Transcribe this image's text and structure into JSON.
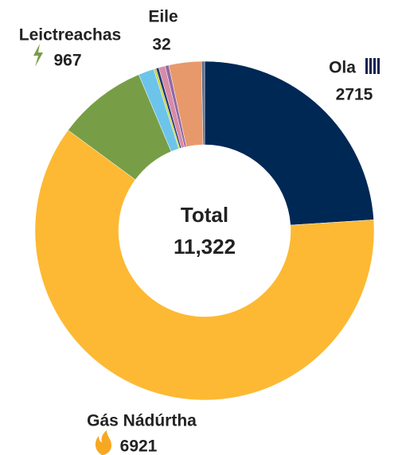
{
  "chart_data": {
    "type": "donut",
    "center_label": "Total",
    "center_value": "11,322",
    "categories": [
      "Ola",
      "Gás Nádúrtha",
      "Leictreachas",
      null,
      null,
      null,
      null,
      null,
      null,
      "Eile"
    ],
    "values": [
      2715,
      6921,
      967,
      170,
      25,
      30,
      70,
      40,
      352,
      32
    ],
    "colors": [
      "#002855",
      "#fdb933",
      "#779e46",
      "#6dc4ea",
      "#c9d33a",
      "#1f3a6e",
      "#d98aa6",
      "#8f6aa3",
      "#e8996b",
      "#5b6c8a"
    ]
  }
}
